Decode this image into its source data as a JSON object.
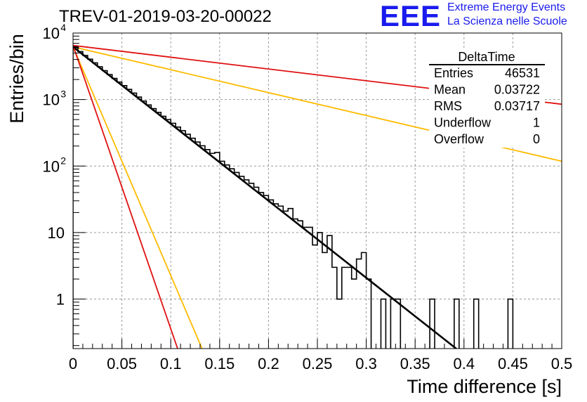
{
  "header": {
    "title": "TREV-01-2019-03-20-00022",
    "logo": {
      "mark": "EEE",
      "line1": "Extreme Energy Events",
      "line2": "La Scienza nelle Scuole"
    }
  },
  "stats": {
    "name": "DeltaTime",
    "rows": [
      {
        "label": "Entries",
        "value": "46531"
      },
      {
        "label": "Mean",
        "value": "0.03722"
      },
      {
        "label": "RMS",
        "value": "0.03717"
      },
      {
        "label": "Underflow",
        "value": "1"
      },
      {
        "label": "Overflow",
        "value": "0"
      }
    ]
  },
  "colors": {
    "histogram": "#000000",
    "red": "#e01010",
    "orange": "#ffbb00",
    "grid": "#9a9a9a",
    "logo": "#1a1aee"
  },
  "chart_data": {
    "type": "line",
    "title": "TREV-01-2019-03-20-00022",
    "xlabel": "Time difference [s]",
    "ylabel": "Entries/bin",
    "xlim": [
      0,
      0.5
    ],
    "ylim": [
      0.18,
      10000
    ],
    "y_scale": "log",
    "grid": true,
    "xticks": [
      0,
      0.05,
      0.1,
      0.15,
      0.2,
      0.25,
      0.3,
      0.35,
      0.4,
      0.45,
      0.5
    ],
    "xtick_labels": [
      "0",
      "0.05",
      "0.1",
      "0.15",
      "0.2",
      "0.25",
      "0.3",
      "0.35",
      "0.4",
      "0.45",
      "0.5"
    ],
    "yticks": [
      1,
      10,
      100,
      1000,
      10000
    ],
    "ytick_labels": [
      {
        "base": "1",
        "exp": ""
      },
      {
        "base": "10",
        "exp": ""
      },
      {
        "base": "10",
        "exp": "2"
      },
      {
        "base": "10",
        "exp": "3"
      },
      {
        "base": "10",
        "exp": "4"
      }
    ],
    "histogram": {
      "bin_width": 0.005,
      "x0": 0,
      "counts": [
        6200,
        5250,
        4600,
        4050,
        3560,
        3120,
        2720,
        2380,
        2080,
        1830,
        1620,
        1420,
        1250,
        1090,
        950,
        830,
        730,
        640,
        560,
        500,
        440,
        385,
        340,
        300,
        262,
        230,
        202,
        177,
        155,
        160,
        118,
        104,
        91,
        80,
        70,
        62,
        55,
        48,
        40,
        36,
        31,
        27,
        25,
        21,
        23,
        16,
        15,
        12,
        12,
        6.5,
        10,
        5,
        9,
        3,
        1,
        3,
        3,
        2,
        4,
        5,
        2,
        0,
        0,
        1,
        0,
        1,
        1,
        0,
        0,
        0,
        0,
        0,
        0,
        1,
        0,
        0,
        0,
        0,
        1,
        0,
        0,
        0,
        1,
        0,
        0,
        0,
        0,
        0,
        0,
        1,
        0,
        0,
        0,
        0,
        0,
        0,
        0,
        0,
        0,
        0
      ]
    },
    "series": [
      {
        "color": "#000000",
        "width": 2.6,
        "x": [
          0,
          0.392
        ],
        "y": [
          6200,
          0.18
        ]
      },
      {
        "color": "#e01010",
        "width": 1.8,
        "x": [
          0,
          0.5
        ],
        "y": [
          6500,
          850
        ]
      },
      {
        "color": "#ffbb00",
        "width": 1.8,
        "x": [
          0,
          0.5
        ],
        "y": [
          6200,
          118
        ]
      },
      {
        "color": "#ffbb00",
        "width": 1.8,
        "x": [
          0,
          0.132
        ],
        "y": [
          6200,
          0.18
        ]
      },
      {
        "color": "#e01010",
        "width": 1.8,
        "x": [
          0,
          0.107
        ],
        "y": [
          6500,
          0.18
        ]
      }
    ]
  }
}
